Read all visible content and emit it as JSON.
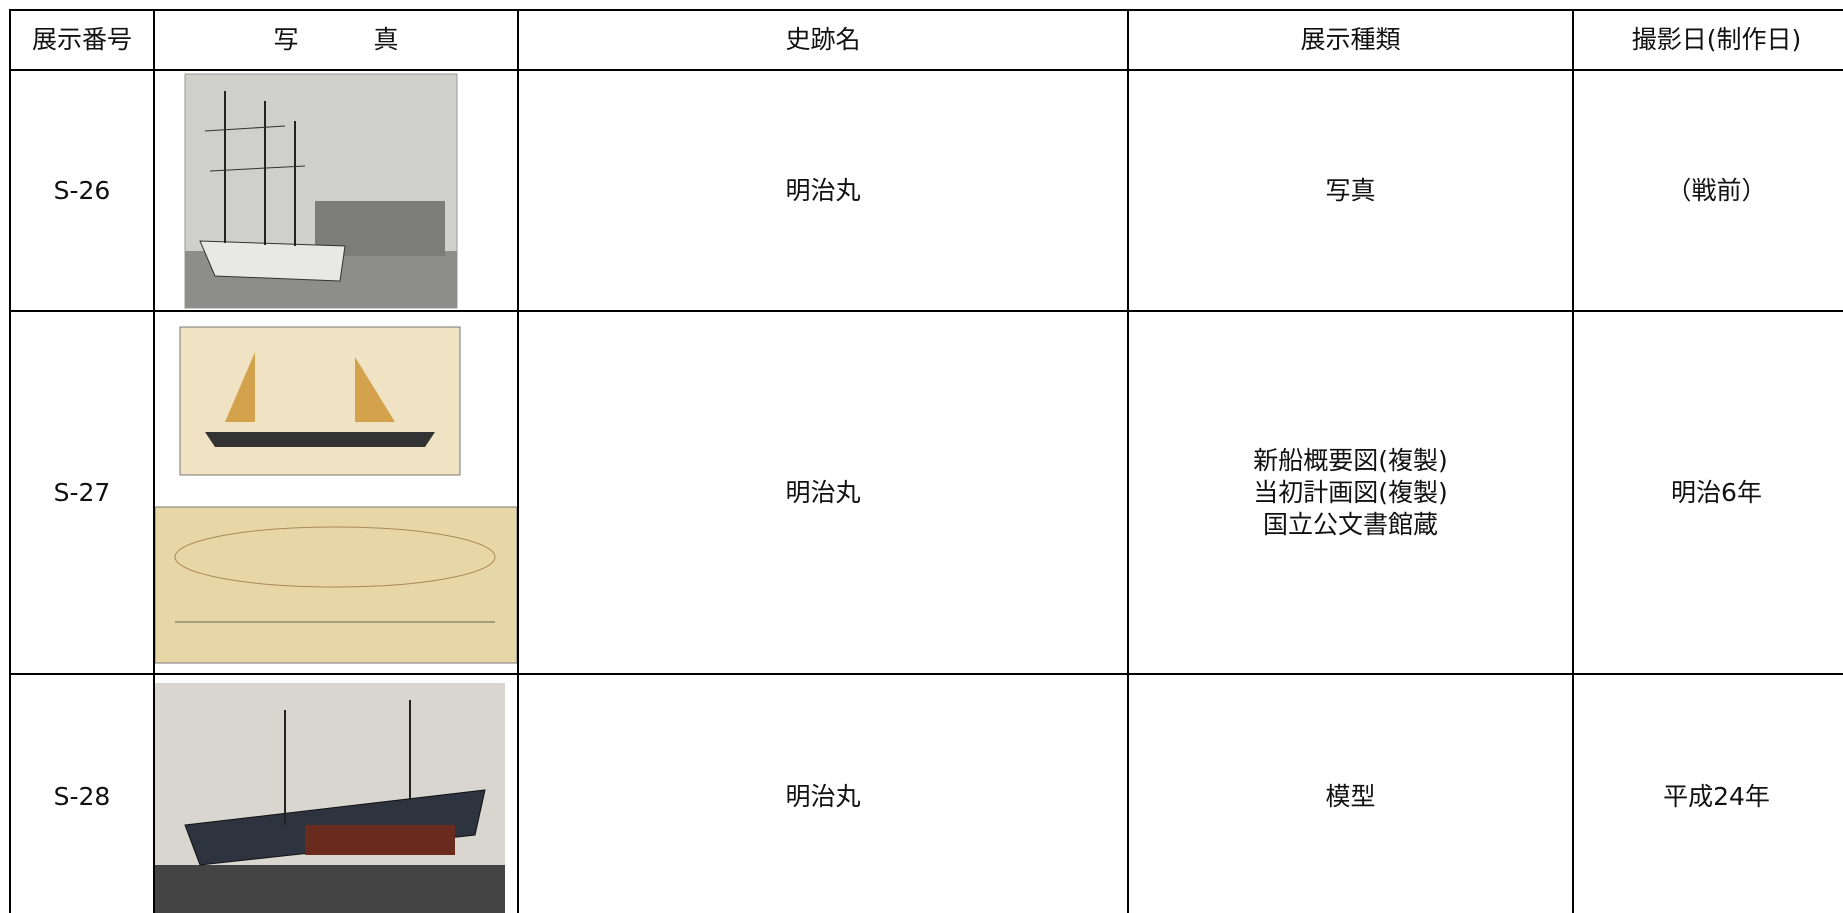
{
  "table": {
    "header": [
      "展示番号",
      "写　　　真",
      "史跡名",
      "展示種類",
      "撮影日(制作日)"
    ],
    "rows": [
      {
        "id": "S-26",
        "site": "明治丸",
        "kind": [
          "写真"
        ],
        "date": "（戦前）"
      },
      {
        "id": "S-27",
        "site": "明治丸",
        "kind": [
          "新船概要図(複製)",
          "当初計画図(複製)",
          "国立公文書館蔵"
        ],
        "date": "明治6年"
      },
      {
        "id": "S-28",
        "site": "明治丸",
        "kind": [
          "模型"
        ],
        "date": "平成24年"
      }
    ]
  }
}
